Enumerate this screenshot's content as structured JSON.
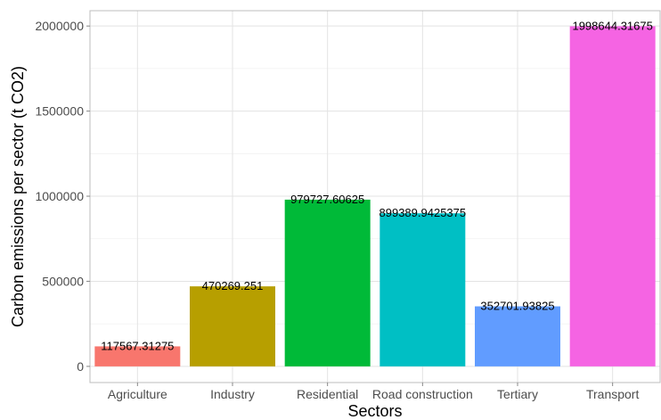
{
  "chart_data": {
    "type": "bar",
    "title": "",
    "xlabel": "Sectors",
    "ylabel": "Carbon emissions per sector (t CO2)",
    "categories": [
      "Agriculture",
      "Industry",
      "Residential",
      "Road construction",
      "Tertiary",
      "Transport"
    ],
    "values": [
      117567.31275,
      470269.251,
      979727.60625,
      899389.9425375,
      352701.93825,
      1998644.31675
    ],
    "value_labels": [
      "117567.31275",
      "470269.251",
      "979727.60625",
      "899389.9425375",
      "352701.93825",
      "1998644.31675"
    ],
    "colors": [
      "#F8766D",
      "#B79F00",
      "#00BA38",
      "#00BFC4",
      "#619CFF",
      "#F564E3"
    ],
    "ylim": [
      -95000,
      2090000
    ],
    "yticks": [
      0,
      500000,
      1000000,
      1500000,
      2000000
    ],
    "ytick_labels": [
      "0",
      "500000",
      "1000000",
      "1500000",
      "2000000"
    ],
    "grid": true,
    "legend": "none"
  }
}
